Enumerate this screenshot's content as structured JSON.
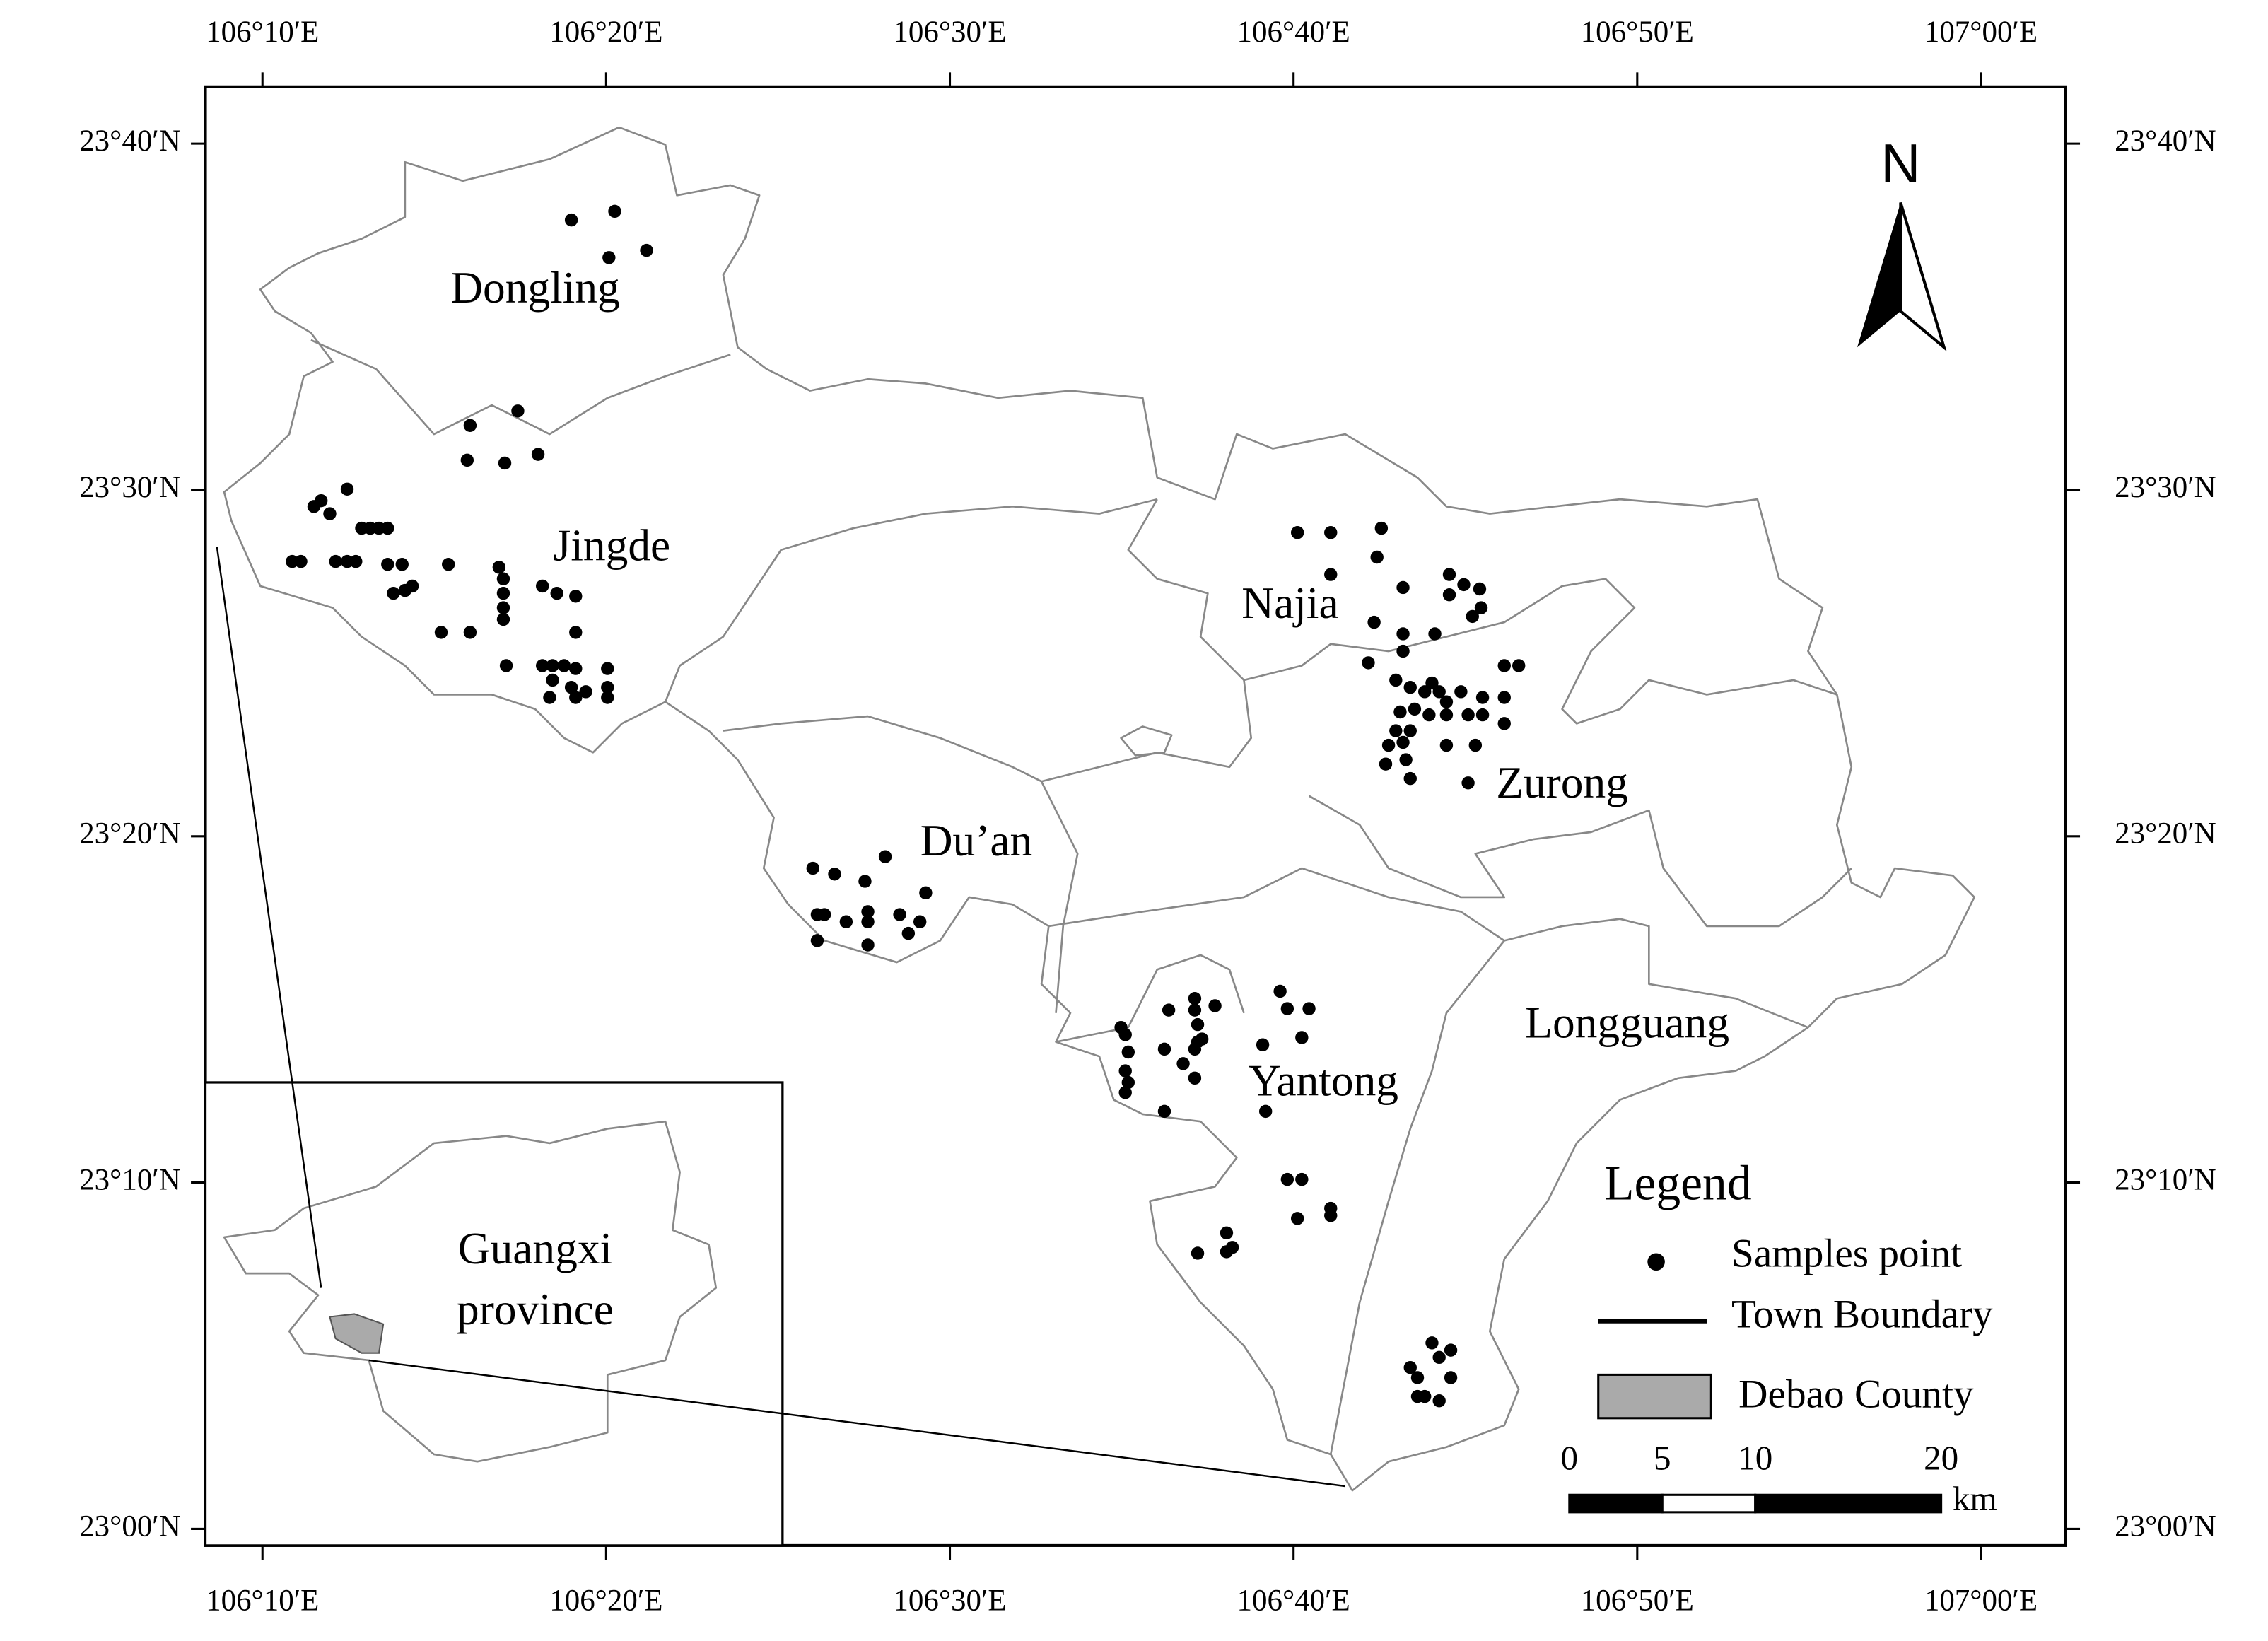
{
  "map": {
    "xlim": [
      106.139,
      107.041
    ],
    "ylim": [
      22.992,
      23.694
    ],
    "xticks": [
      {
        "value": 106.16667,
        "label": "106°10′E"
      },
      {
        "value": 106.33333,
        "label": "106°20′E"
      },
      {
        "value": 106.5,
        "label": "106°30′E"
      },
      {
        "value": 106.66667,
        "label": "106°40′E"
      },
      {
        "value": 106.83333,
        "label": "106°50′E"
      },
      {
        "value": 107,
        "label": "107°00′E"
      }
    ],
    "yticks": [
      {
        "value": 23,
        "label": "23°00′N"
      },
      {
        "value": 23.16667,
        "label": "23°10′N"
      },
      {
        "value": 23.33333,
        "label": "23°20′N"
      },
      {
        "value": 23.5,
        "label": "23°30′N"
      },
      {
        "value": 23.66667,
        "label": "23°40′N"
      }
    ]
  },
  "towns": [
    "Dongling",
    "Jingde",
    "Najia",
    "Zurong",
    "Du’an",
    "Yantong",
    "Longguang"
  ],
  "inset": [
    "Guangxi",
    "province"
  ],
  "north": "N",
  "legend": {
    "title": "Legend",
    "items": [
      "Samples point",
      "Town Boundary",
      "Debao County"
    ]
  },
  "scale_bar": {
    "ticks": [
      0,
      5,
      10,
      20
    ],
    "unit": "km"
  }
}
